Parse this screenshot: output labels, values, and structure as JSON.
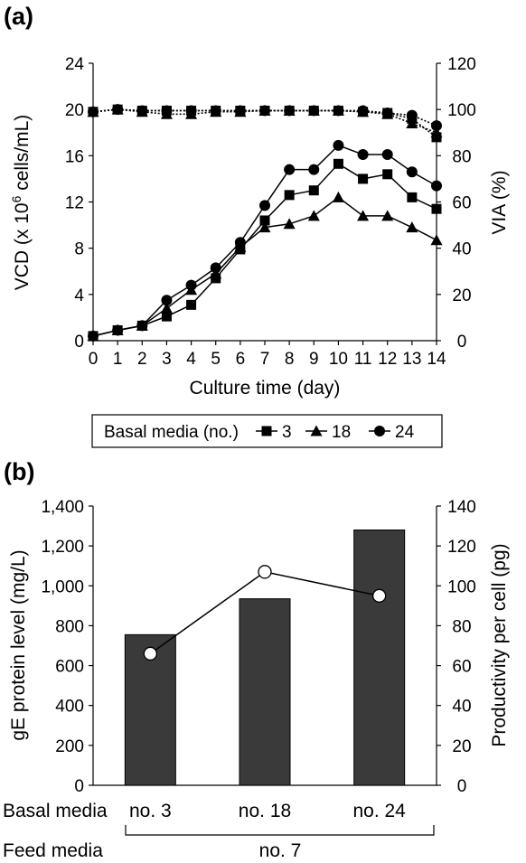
{
  "chart_data": [
    {
      "panel_label": "(a)",
      "type": "line",
      "xlabel": "Culture time (day)",
      "ylabel_html": "VCD (x 10",
      "ylabel_sup": "6",
      "ylabel_tail": " cells/mL)",
      "y2label": "VIA (%)",
      "x": [
        0,
        1,
        2,
        3,
        4,
        5,
        6,
        7,
        8,
        9,
        10,
        11,
        12,
        13,
        14
      ],
      "xlim": [
        0,
        14
      ],
      "ylim": [
        0,
        24
      ],
      "yticks": [
        0,
        4,
        8,
        12,
        16,
        20,
        24
      ],
      "y2lim": [
        0,
        120
      ],
      "y2ticks": [
        0,
        20,
        40,
        60,
        80,
        100,
        120
      ],
      "legend": {
        "title": "Basal media (no.)",
        "placement": "bottom"
      },
      "series": [
        {
          "name": "3",
          "marker": "square",
          "axis": "left",
          "values": [
            0.4,
            0.9,
            1.3,
            2.1,
            3.1,
            5.4,
            7.9,
            10.4,
            12.6,
            13.0,
            15.3,
            14.0,
            14.4,
            12.4,
            11.4
          ]
        },
        {
          "name": "18",
          "marker": "triangle",
          "axis": "left",
          "values": [
            0.4,
            0.9,
            1.3,
            2.8,
            4.4,
            5.8,
            8.1,
            9.8,
            10.1,
            10.8,
            12.4,
            10.8,
            10.8,
            9.8,
            8.7
          ]
        },
        {
          "name": "24",
          "marker": "circle",
          "axis": "left",
          "values": [
            0.4,
            0.9,
            1.3,
            3.5,
            4.8,
            6.3,
            8.5,
            11.7,
            14.8,
            14.8,
            16.9,
            16.1,
            16.1,
            14.6,
            13.4
          ]
        },
        {
          "name": "3",
          "marker": "square",
          "axis": "right",
          "line": "dotted",
          "values": [
            99,
            100,
            99.5,
            99.5,
            99.5,
            99.5,
            99.5,
            99.5,
            99.5,
            99.5,
            99.5,
            99,
            98.5,
            96,
            88
          ]
        },
        {
          "name": "18",
          "marker": "triangle",
          "axis": "right",
          "line": "dotted",
          "values": [
            99,
            100,
            99,
            98,
            98,
            99,
            99,
            99.5,
            99.5,
            99.5,
            99.5,
            99,
            98,
            94,
            90
          ]
        },
        {
          "name": "24",
          "marker": "circle",
          "axis": "right",
          "line": "dotted",
          "values": [
            99,
            100,
            99.5,
            99.5,
            99.5,
            99.5,
            99.5,
            99.5,
            99.5,
            99.5,
            99.5,
            99.5,
            98.5,
            97.5,
            93
          ]
        }
      ]
    },
    {
      "panel_label": "(b)",
      "type": "bar",
      "ylabel": "gE protein level (mg/L)",
      "y2label": "Productivity per cell (pg)",
      "categories": [
        "no. 3",
        "no. 18",
        "no. 24"
      ],
      "category_row_label": "Basal media",
      "feed_row_label": "Feed media",
      "feed_value": "no. 7",
      "ylim": [
        0,
        1400
      ],
      "yticks": [
        "0",
        "200",
        "400",
        "600",
        "800",
        "1,000",
        "1,200",
        "1,400"
      ],
      "y2lim": [
        0,
        140
      ],
      "y2ticks": [
        "0",
        "20",
        "40",
        "60",
        "80",
        "100",
        "120",
        "140"
      ],
      "series": [
        {
          "axis": "left",
          "kind": "bar",
          "values": [
            755,
            935,
            1280
          ]
        },
        {
          "axis": "right",
          "kind": "line",
          "marker": "open-circle",
          "values": [
            66,
            107,
            95
          ]
        }
      ]
    }
  ],
  "colors": {
    "bar": "#3a3a3a",
    "line": "#000000",
    "marker_open_fill": "#ffffff"
  }
}
